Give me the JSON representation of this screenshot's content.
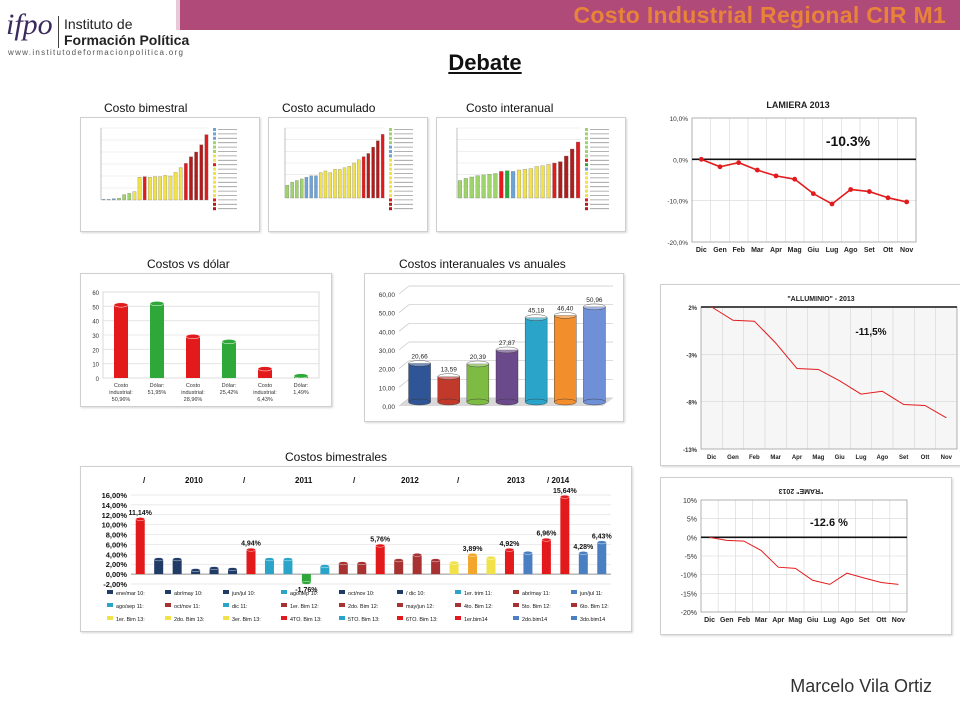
{
  "header": {
    "title": "Costo Industrial Regional CIR M1",
    "logo_mark": "ifpo",
    "logo_line1": "Instituto de",
    "logo_line2": "Formación Política",
    "logo_url": "www.institutodeformacionpolitica.org"
  },
  "page": {
    "heading": "Debate",
    "author": "Marcelo Vila Ortiz"
  },
  "captions": {
    "bimestral": "Costo bimestral",
    "acumulado": "Costo acumulado",
    "interanual": "Costo interanual",
    "dolar": "Costos vs dólar",
    "interanuales": "Costos interanuales vs anuales",
    "bimestrales": "Costos bimestrales"
  },
  "colors": {
    "red": "#e31a1c",
    "green": "#2fa83a",
    "navy": "#1f3b66",
    "yellow": "#f2e24a",
    "accent": "#b04a79",
    "title": "#e8833a"
  },
  "chart_data": [
    {
      "id": "costo-bimestral",
      "type": "bar",
      "values": [
        0.1,
        0.1,
        0.2,
        0.3,
        0.9,
        1.1,
        1.4,
        3.8,
        3.9,
        3.8,
        3.9,
        3.9,
        4.1,
        4.0,
        4.6,
        5.4,
        6.1,
        7.2,
        8.0,
        9.2,
        10.9
      ],
      "bar_colors": [
        "#6da3d8",
        "#6da3d8",
        "#6da3d8",
        "#9fd36b",
        "#9fd36b",
        "#9fd36b",
        "#f2e24a",
        "#f2e24a",
        "#e31a1c",
        "#f2e24a",
        "#f2e24a",
        "#f2e24a",
        "#f2e24a",
        "#f2e24a",
        "#f2e24a",
        "#f2e24a",
        "#e31a1c",
        "#b01c1c",
        "#b01c1c",
        "#b01c1c",
        "#e31a1c"
      ],
      "ylim": [
        0,
        12
      ]
    },
    {
      "id": "costo-acumulado",
      "type": "bar",
      "values": [
        4,
        5,
        5.5,
        6,
        6.5,
        7,
        7,
        8,
        8.5,
        8,
        9,
        9,
        9.5,
        10,
        11,
        12,
        13,
        14,
        16,
        18,
        20
      ],
      "bar_colors": [
        "#9fd36b",
        "#9fd36b",
        "#9fd36b",
        "#9fd36b",
        "#6da3d8",
        "#6da3d8",
        "#6da3d8",
        "#f2e24a",
        "#f2e24a",
        "#f2e24a",
        "#f2e24a",
        "#f2e24a",
        "#f2e24a",
        "#f2e24a",
        "#f2e24a",
        "#f2e24a",
        "#e31a1c",
        "#b01c1c",
        "#b01c1c",
        "#b01c1c",
        "#e31a1c"
      ],
      "ylim": [
        0,
        22
      ]
    },
    {
      "id": "costo-interanual",
      "type": "bar",
      "values": [
        25,
        28,
        30,
        32,
        33,
        34,
        35,
        38,
        39,
        38,
        40,
        41,
        42,
        45,
        46,
        48,
        50,
        52,
        60,
        70,
        80
      ],
      "bar_colors": [
        "#9fd36b",
        "#9fd36b",
        "#9fd36b",
        "#9fd36b",
        "#9fd36b",
        "#9fd36b",
        "#9fd36b",
        "#e31a1c",
        "#2fa83a",
        "#6da3d8",
        "#f2e24a",
        "#f2e24a",
        "#f2e24a",
        "#f2e24a",
        "#f2e24a",
        "#f2e24a",
        "#e31a1c",
        "#b01c1c",
        "#b01c1c",
        "#b01c1c",
        "#e31a1c"
      ],
      "ylim": [
        0,
        100
      ]
    },
    {
      "id": "costos-vs-dolar",
      "type": "bar",
      "categories": [
        "Costo industrial: 50,96%",
        "Dólar: 51,95%",
        "Costo industrial: 28,96%",
        "Dólar: 25,42%",
        "Costo industrial: 6,43%",
        "Dólar: 1,49%"
      ],
      "values": [
        50.96,
        51.95,
        28.96,
        25.42,
        6.43,
        1.49
      ],
      "bar_colors": [
        "#e31a1c",
        "#2fa83a",
        "#e31a1c",
        "#2fa83a",
        "#e31a1c",
        "#2fa83a"
      ],
      "ylim": [
        0,
        60
      ],
      "yticks": [
        "0",
        "10",
        "20",
        "30",
        "40",
        "50",
        "60"
      ]
    },
    {
      "id": "costos-interanuales-vs-anuales",
      "type": "bar",
      "values": [
        20.66,
        13.59,
        20.39,
        27.87,
        45.18,
        46.4,
        50.96
      ],
      "value_labels": [
        "20,66",
        "13,59",
        "20,39",
        "27,87",
        "45,18",
        "46,40",
        "50,96"
      ],
      "bar_colors": [
        "#2f5597",
        "#c0392b",
        "#7dbb42",
        "#6b4a8c",
        "#2aa5c9",
        "#f28e2b",
        "#6f8fd6"
      ],
      "ylim": [
        0,
        60
      ],
      "yticks": [
        "0,00",
        "10,00",
        "20,00",
        "30,00",
        "40,00",
        "50,00",
        "60,00"
      ]
    },
    {
      "id": "costos-bimestrales",
      "type": "bar",
      "year_header": [
        "/",
        "2010",
        "/",
        "2011",
        "/",
        "2012",
        "/",
        "2013",
        "/ 2014"
      ],
      "values": [
        11.14,
        3.0,
        3.0,
        0.8,
        1.2,
        1.0,
        4.94,
        3.0,
        3.0,
        -1.76,
        1.6,
        2.2,
        2.2,
        5.76,
        2.8,
        3.9,
        2.8,
        2.3,
        3.89,
        3.3,
        4.92,
        4.3,
        6.96,
        15.64,
        4.28,
        6.43
      ],
      "value_labels": [
        "11,14%",
        "",
        "",
        "",
        "",
        "",
        "4,94%",
        "",
        "",
        "-1,76%",
        "",
        "",
        "",
        "5,76%",
        "",
        "",
        "",
        "",
        "3,89%",
        "",
        "4,92%",
        "",
        "6,96%",
        "15,64%",
        "4,28%",
        "6,43%"
      ],
      "bar_colors": [
        "#e31a1c",
        "#1f3b66",
        "#1f3b66",
        "#1f3b66",
        "#1f3b66",
        "#1f3b66",
        "#e31a1c",
        "#2aa5c9",
        "#2aa5c9",
        "#2fa83a",
        "#2aa5c9",
        "#a83232",
        "#a83232",
        "#e31a1c",
        "#a83232",
        "#a83232",
        "#a83232",
        "#f2e24a",
        "#f2a62b",
        "#f2e24a",
        "#e31a1c",
        "#4a7fc1",
        "#e31a1c",
        "#e31a1c",
        "#4a7fc1",
        "#4a7fc1"
      ],
      "ylim": [
        -2,
        16
      ],
      "yticks": [
        "-2,00%",
        "0,00%",
        "2,00%",
        "4,00%",
        "6,00%",
        "8,00%",
        "10,00%",
        "12,00%",
        "14,00%",
        "16,00%"
      ],
      "legend_rows": [
        [
          [
            "#1f3b66",
            "ene/mar 10:"
          ],
          [
            "#1f3b66",
            "abr/may 10:"
          ],
          [
            "#1f3b66",
            "jun/jul 10:"
          ],
          [
            "#2aa5c9",
            "ago/sep 10:"
          ],
          [
            "#1f3b66",
            "oct/nov 10:"
          ],
          [
            "#1f3b66",
            "/ dic 10:"
          ],
          [
            "#2aa5c9",
            "1er. trim 11:"
          ],
          [
            "#a83232",
            "abr/may 11:"
          ],
          [
            "#4a7fc1",
            "jun/jul 11:"
          ]
        ],
        [
          [
            "#2aa5c9",
            "ago/sep 11:"
          ],
          [
            "#a83232",
            "oct/nov 11:"
          ],
          [
            "#2aa5c9",
            "dic 11:"
          ],
          [
            "#a83232",
            "1er. Bim 12:"
          ],
          [
            "#a83232",
            "2do. Bim 12:"
          ],
          [
            "#a83232",
            "may/jun 12:"
          ],
          [
            "#a83232",
            "4to. Bim 12:"
          ],
          [
            "#a83232",
            "5to. Bim 12:"
          ],
          [
            "#a83232",
            "6to. Bim 12:"
          ]
        ],
        [
          [
            "#f2e24a",
            "1er. Bim 13:"
          ],
          [
            "#f2e24a",
            "2do. Bim 13:"
          ],
          [
            "#f2e24a",
            "3er. Bim 13:"
          ],
          [
            "#e31a1c",
            "4TO. Bim 13:"
          ],
          [
            "#2aa5c9",
            "5TO. Bim 13:"
          ],
          [
            "#e31a1c",
            "6TO. Bim 13:"
          ],
          [
            "#e31a1c",
            "1er.bim14"
          ],
          [
            "#4a7fc1",
            "2do.bim14"
          ],
          [
            "#4a7fc1",
            "3do.bim14"
          ]
        ]
      ]
    },
    {
      "id": "lamiera-2013",
      "type": "line",
      "title": "LAMIERA 2013",
      "categories": [
        "Dic",
        "Gen",
        "Feb",
        "Mar",
        "Apr",
        "Mag",
        "Giu",
        "Lug",
        "Ago",
        "Set",
        "Ott",
        "Nov"
      ],
      "values": [
        0.0,
        -1.8,
        -0.8,
        -2.6,
        -4.0,
        -4.8,
        -8.3,
        -10.8,
        -7.3,
        -7.8,
        -9.3,
        -10.3
      ],
      "annotation": "-10.3%",
      "ylim": [
        -20,
        10
      ],
      "yticks": [
        "10,0%",
        "0,0%",
        "-10,0%",
        "-20,0%"
      ]
    },
    {
      "id": "alluminio-2013",
      "type": "line",
      "title": "\"ALLUMINIO\" - 2013",
      "categories": [
        "Dic",
        "Gen",
        "Feb",
        "Mar",
        "Apr",
        "Mag",
        "Giu",
        "Lug",
        "Ago",
        "Set",
        "Ott",
        "Nov"
      ],
      "values": [
        2.0,
        0.6,
        0.5,
        -1.8,
        -4.5,
        -4.6,
        -5.8,
        -7.2,
        -6.9,
        -8.3,
        -8.4,
        -9.7
      ],
      "annotation": "-11,5%",
      "ylim": [
        -13,
        2
      ],
      "yticks": [
        "2%",
        "-3%",
        "-8%",
        "-13%"
      ]
    },
    {
      "id": "rame-2013",
      "type": "line",
      "title": "\"RAME\" 2013",
      "categories": [
        "Dic",
        "Gen",
        "Feb",
        "Mar",
        "Apr",
        "Mag",
        "Giu",
        "Lug",
        "Ago",
        "Set",
        "Ott",
        "Nov"
      ],
      "values": [
        0.0,
        -0.8,
        -1.0,
        -3.5,
        -8.0,
        -8.3,
        -11.5,
        -12.6,
        -9.6,
        -10.9,
        -12.1,
        -12.6
      ],
      "annotation": "-12.6 %",
      "ylim": [
        -20,
        10
      ],
      "yticks": [
        "10%",
        "5%",
        "0%",
        "-5%",
        "-10%",
        "-15%",
        "-20%"
      ]
    }
  ]
}
